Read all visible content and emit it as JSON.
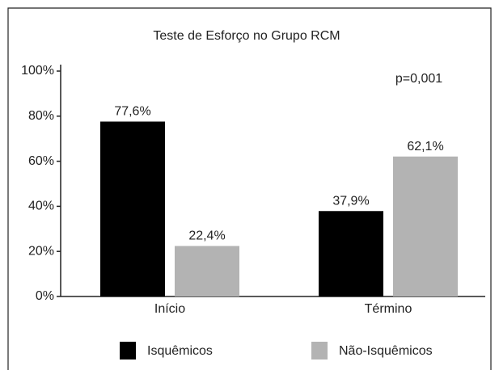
{
  "chart_data": {
    "type": "bar",
    "title": "Teste de Esforço no Grupo RCM",
    "annotation": "p=0,001",
    "categories": [
      "Início",
      "Término"
    ],
    "series": [
      {
        "name": "Isquêmicos",
        "color": "#000000",
        "values": [
          77.6,
          37.9
        ],
        "value_labels": [
          "77,6%",
          "37,9%"
        ]
      },
      {
        "name": "Não-Isquêmicos",
        "color": "#b3b3b3",
        "values": [
          22.4,
          62.1
        ],
        "value_labels": [
          "22,4%",
          "62,1%"
        ]
      }
    ],
    "ylim": [
      0,
      100
    ],
    "yticks": [
      {
        "value": 0,
        "label": "0%"
      },
      {
        "value": 20,
        "label": "20%"
      },
      {
        "value": 40,
        "label": "40%"
      },
      {
        "value": 60,
        "label": "60%"
      },
      {
        "value": 80,
        "label": "80%"
      },
      {
        "value": 100,
        "label": "100%"
      }
    ],
    "grid": false
  }
}
